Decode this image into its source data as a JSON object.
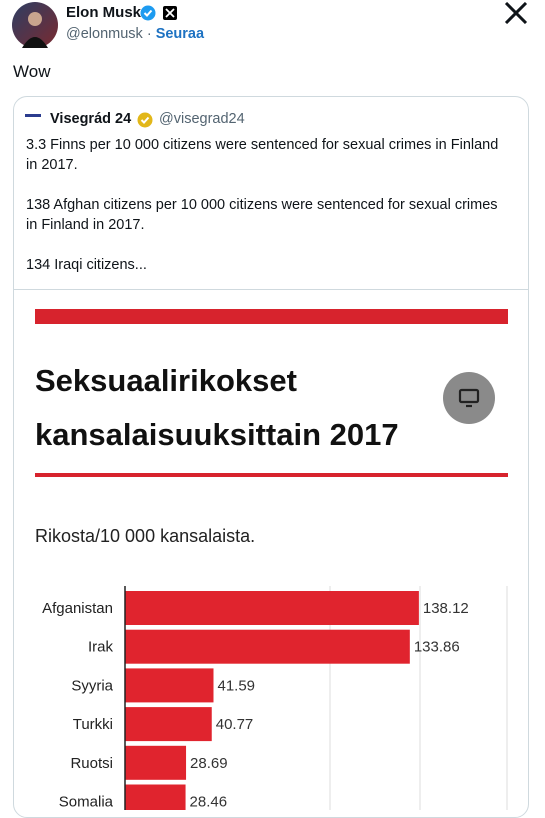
{
  "author": {
    "name": "Elon Musk",
    "handle": "@elonmusk",
    "separator": "·",
    "follow": "Seuraa"
  },
  "text": "Wow",
  "quote": {
    "name": "Visegrád 24",
    "handle": "@visegrad24",
    "paragraphs": [
      "3.3 Finns per 10 000 citizens were sentenced for sexual crimes in Finland in 2017.",
      "138 Afghan citizens per 10 000 citizens were sentenced for sexual crimes in Finland in 2017.",
      "134 Iraqi citizens..."
    ]
  },
  "chart_data": {
    "type": "hbar",
    "title": "Seksuaalirikokset kansalaisuuksittain 2017",
    "subtitle": "Rikosta/10 000 kansalaista.",
    "categories": [
      "Afganistan",
      "Irak",
      "Syyria",
      "Turkki",
      "Ruotsi",
      "Somalia"
    ],
    "values": [
      138.12,
      133.86,
      41.59,
      40.77,
      28.69,
      28.46
    ],
    "color": "#e0242e",
    "xlim": [
      0,
      180
    ]
  }
}
